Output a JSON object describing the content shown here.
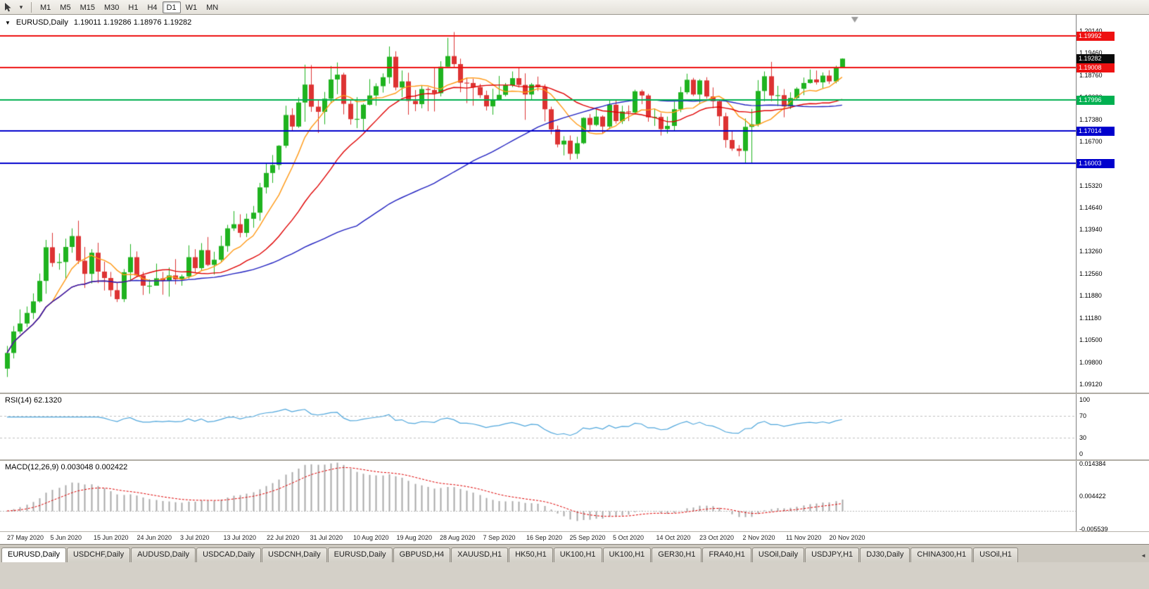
{
  "toolbar": {
    "timeframes": [
      {
        "label": "M1",
        "selected": false
      },
      {
        "label": "M5",
        "selected": false
      },
      {
        "label": "M15",
        "selected": false
      },
      {
        "label": "M30",
        "selected": false
      },
      {
        "label": "H1",
        "selected": false
      },
      {
        "label": "H4",
        "selected": false
      },
      {
        "label": "D1",
        "selected": true
      },
      {
        "label": "W1",
        "selected": false
      },
      {
        "label": "MN",
        "selected": false
      }
    ]
  },
  "icons": {
    "title_marker": "▼",
    "toolbar_caret": "▾",
    "tabs_scroll_left": "◄"
  },
  "chart_header": {
    "symbol_period": "EURUSD,Daily",
    "ohlc": "1.19011 1.19286 1.18976 1.19282"
  },
  "chart_data": {
    "type": "candlestick",
    "symbol": "EURUSD",
    "period": "Daily",
    "ylim": [
      1.0885,
      1.2065
    ],
    "up_color": "#1fb31f",
    "down_color": "#dd3333",
    "y_ticks": [
      "1.20140",
      "1.19460",
      "1.18760",
      "1.18080",
      "1.17380",
      "1.16700",
      "1.16020",
      "1.15320",
      "1.14640",
      "1.13940",
      "1.13260",
      "1.12560",
      "1.11880",
      "1.11180",
      "1.10500",
      "1.09800",
      "1.09120"
    ],
    "x_labels": [
      "27 May 2020",
      "5 Jun 2020",
      "15 Jun 2020",
      "24 Jun 2020",
      "3 Jul 2020",
      "13 Jul 2020",
      "22 Jul 2020",
      "31 Jul 2020",
      "10 Aug 2020",
      "19 Aug 2020",
      "28 Aug 2020",
      "7 Sep 2020",
      "16 Sep 2020",
      "25 Sep 2020",
      "5 Oct 2020",
      "14 Oct 2020",
      "23 Oct 2020",
      "2 Nov 2020",
      "11 Nov 2020",
      "20 Nov 2020"
    ],
    "horizontal_lines": [
      {
        "price": 1.19992,
        "label": "1.19992",
        "color": "#ee1111"
      },
      {
        "price": 1.19008,
        "label": "1.19008",
        "color": "#ee1111"
      },
      {
        "price": 1.17996,
        "label": "1.17996",
        "color": "#00b050"
      },
      {
        "price": 1.17014,
        "label": "1.17014",
        "color": "#0000cd"
      },
      {
        "price": 1.16003,
        "label": "1.16003",
        "color": "#0000cd"
      }
    ],
    "current_price": {
      "value": 1.19282,
      "label": "1.19282"
    },
    "moving_averages": [
      {
        "period": 8,
        "color": "#ff9914"
      },
      {
        "period": 20,
        "color": "#e00000"
      },
      {
        "period": 55,
        "color": "#2020c0"
      }
    ],
    "candles": [
      [
        1.096,
        1.1031,
        1.0934,
        1.1009
      ],
      [
        1.1009,
        1.1093,
        1.0992,
        1.1076
      ],
      [
        1.1076,
        1.1145,
        1.1069,
        1.1101
      ],
      [
        1.1101,
        1.1154,
        1.109,
        1.1134
      ],
      [
        1.1134,
        1.1195,
        1.1115,
        1.117
      ],
      [
        1.117,
        1.1257,
        1.1166,
        1.1234
      ],
      [
        1.1234,
        1.1362,
        1.1194,
        1.1339
      ],
      [
        1.1339,
        1.1384,
        1.1278,
        1.129
      ],
      [
        1.129,
        1.132,
        1.1269,
        1.1293
      ],
      [
        1.1293,
        1.1366,
        1.124,
        1.134
      ],
      [
        1.134,
        1.1398,
        1.1322,
        1.1374
      ],
      [
        1.1374,
        1.1422,
        1.1287,
        1.1297
      ],
      [
        1.1297,
        1.134,
        1.1212,
        1.1256
      ],
      [
        1.1256,
        1.1333,
        1.1226,
        1.1322
      ],
      [
        1.1322,
        1.1353,
        1.1227,
        1.1263
      ],
      [
        1.1263,
        1.1294,
        1.1204,
        1.1243
      ],
      [
        1.1243,
        1.1262,
        1.1185,
        1.1205
      ],
      [
        1.1205,
        1.1227,
        1.1168,
        1.1177
      ],
      [
        1.1177,
        1.1271,
        1.1168,
        1.1261
      ],
      [
        1.1261,
        1.1349,
        1.1233,
        1.1308
      ],
      [
        1.1308,
        1.1326,
        1.1246,
        1.1251
      ],
      [
        1.1251,
        1.1262,
        1.119,
        1.1219
      ],
      [
        1.1219,
        1.1239,
        1.1194,
        1.1219
      ],
      [
        1.1219,
        1.1288,
        1.1219,
        1.1242
      ],
      [
        1.1242,
        1.1262,
        1.1191,
        1.1234
      ],
      [
        1.1234,
        1.1276,
        1.1185,
        1.1251
      ],
      [
        1.1251,
        1.1302,
        1.1223,
        1.1239
      ],
      [
        1.1239,
        1.1254,
        1.1219,
        1.1248
      ],
      [
        1.1248,
        1.1345,
        1.1241,
        1.1308
      ],
      [
        1.1308,
        1.1333,
        1.1259,
        1.1274
      ],
      [
        1.1274,
        1.1352,
        1.1266,
        1.133
      ],
      [
        1.133,
        1.1371,
        1.128,
        1.1284
      ],
      [
        1.1284,
        1.1325,
        1.1254,
        1.13
      ],
      [
        1.13,
        1.1375,
        1.1293,
        1.1343
      ],
      [
        1.1343,
        1.1409,
        1.1325,
        1.1398
      ],
      [
        1.1398,
        1.1452,
        1.139,
        1.1411
      ],
      [
        1.1411,
        1.1442,
        1.137,
        1.1384
      ],
      [
        1.1384,
        1.1444,
        1.1371,
        1.1428
      ],
      [
        1.1428,
        1.1468,
        1.14,
        1.1447
      ],
      [
        1.1447,
        1.154,
        1.1422,
        1.1526
      ],
      [
        1.1526,
        1.1601,
        1.1507,
        1.1571
      ],
      [
        1.1571,
        1.1627,
        1.154,
        1.1596
      ],
      [
        1.1596,
        1.1658,
        1.1581,
        1.1656
      ],
      [
        1.1656,
        1.1781,
        1.1649,
        1.1752
      ],
      [
        1.1752,
        1.1773,
        1.1701,
        1.1716
      ],
      [
        1.1716,
        1.1807,
        1.1712,
        1.1791
      ],
      [
        1.1791,
        1.1909,
        1.1731,
        1.1847
      ],
      [
        1.1847,
        1.1908,
        1.1762,
        1.1778
      ],
      [
        1.1778,
        1.1797,
        1.1696,
        1.1762
      ],
      [
        1.1762,
        1.1824,
        1.1723,
        1.1803
      ],
      [
        1.1803,
        1.1905,
        1.179,
        1.1863
      ],
      [
        1.1863,
        1.1916,
        1.1817,
        1.1878
      ],
      [
        1.1878,
        1.1884,
        1.1754,
        1.1787
      ],
      [
        1.1787,
        1.1798,
        1.1722,
        1.1739
      ],
      [
        1.1739,
        1.1808,
        1.1711,
        1.174
      ],
      [
        1.174,
        1.1788,
        1.1701,
        1.1784
      ],
      [
        1.1784,
        1.1864,
        1.1782,
        1.1813
      ],
      [
        1.1813,
        1.1851,
        1.1781,
        1.1842
      ],
      [
        1.1842,
        1.1882,
        1.1822,
        1.187
      ],
      [
        1.187,
        1.1966,
        1.185,
        1.1934
      ],
      [
        1.1934,
        1.1951,
        1.1829,
        1.1838
      ],
      [
        1.1838,
        1.1891,
        1.1808,
        1.1857
      ],
      [
        1.1857,
        1.1884,
        1.1753,
        1.1796
      ],
      [
        1.1796,
        1.183,
        1.1764,
        1.1786
      ],
      [
        1.1786,
        1.1843,
        1.1773,
        1.1833
      ],
      [
        1.1833,
        1.1839,
        1.1764,
        1.183
      ],
      [
        1.183,
        1.1899,
        1.1763,
        1.182
      ],
      [
        1.182,
        1.192,
        1.181,
        1.1903
      ],
      [
        1.1903,
        1.1993,
        1.1898,
        1.1936
      ],
      [
        1.1936,
        1.2011,
        1.1901,
        1.1911
      ],
      [
        1.1911,
        1.1928,
        1.1823,
        1.1853
      ],
      [
        1.1853,
        1.1868,
        1.1789,
        1.1852
      ],
      [
        1.1852,
        1.1865,
        1.1781,
        1.1839
      ],
      [
        1.1839,
        1.1849,
        1.1805,
        1.1814
      ],
      [
        1.1814,
        1.1828,
        1.1766,
        1.1779
      ],
      [
        1.1779,
        1.1834,
        1.1753,
        1.1801
      ],
      [
        1.1801,
        1.1874,
        1.18,
        1.1815
      ],
      [
        1.1815,
        1.1852,
        1.181,
        1.1845
      ],
      [
        1.1845,
        1.1888,
        1.1839,
        1.1867
      ],
      [
        1.1867,
        1.19,
        1.1838,
        1.1846
      ],
      [
        1.1846,
        1.1882,
        1.1737,
        1.1816
      ],
      [
        1.1816,
        1.1852,
        1.1797,
        1.1847
      ],
      [
        1.1847,
        1.1872,
        1.1827,
        1.1839
      ],
      [
        1.1839,
        1.1848,
        1.1732,
        1.177
      ],
      [
        1.177,
        1.1778,
        1.1692,
        1.1707
      ],
      [
        1.1707,
        1.1719,
        1.1651,
        1.166
      ],
      [
        1.166,
        1.1686,
        1.1626,
        1.1672
      ],
      [
        1.1672,
        1.1688,
        1.1612,
        1.1631
      ],
      [
        1.1631,
        1.1684,
        1.1615,
        1.1664
      ],
      [
        1.1664,
        1.1745,
        1.1661,
        1.1743
      ],
      [
        1.1743,
        1.1755,
        1.17,
        1.1721
      ],
      [
        1.1721,
        1.1769,
        1.1717,
        1.1747
      ],
      [
        1.1747,
        1.1751,
        1.1695,
        1.1716
      ],
      [
        1.1716,
        1.1798,
        1.1708,
        1.1784
      ],
      [
        1.1784,
        1.1799,
        1.1725,
        1.1733
      ],
      [
        1.1733,
        1.1781,
        1.1724,
        1.1763
      ],
      [
        1.1763,
        1.1782,
        1.1733,
        1.176
      ],
      [
        1.176,
        1.1831,
        1.1754,
        1.1826
      ],
      [
        1.1826,
        1.1831,
        1.1786,
        1.1813
      ],
      [
        1.1813,
        1.1818,
        1.1731,
        1.1745
      ],
      [
        1.1745,
        1.1772,
        1.1718,
        1.1746
      ],
      [
        1.1746,
        1.1758,
        1.1688,
        1.1708
      ],
      [
        1.1708,
        1.1747,
        1.1694,
        1.1718
      ],
      [
        1.1718,
        1.1794,
        1.1703,
        1.177
      ],
      [
        1.177,
        1.184,
        1.1761,
        1.1823
      ],
      [
        1.1823,
        1.1881,
        1.1817,
        1.1862
      ],
      [
        1.1862,
        1.1868,
        1.1811,
        1.1816
      ],
      [
        1.1816,
        1.1864,
        1.1786,
        1.186
      ],
      [
        1.186,
        1.187,
        1.1803,
        1.181
      ],
      [
        1.181,
        1.1838,
        1.1773,
        1.1795
      ],
      [
        1.1795,
        1.18,
        1.1718,
        1.1748
      ],
      [
        1.1748,
        1.1759,
        1.165,
        1.1674
      ],
      [
        1.1674,
        1.1704,
        1.164,
        1.1647
      ],
      [
        1.1647,
        1.1658,
        1.1623,
        1.164
      ],
      [
        1.164,
        1.1741,
        1.1603,
        1.1715
      ],
      [
        1.1715,
        1.1771,
        1.1602,
        1.1723
      ],
      [
        1.1723,
        1.1861,
        1.1716,
        1.1827
      ],
      [
        1.1827,
        1.1888,
        1.1795,
        1.1873
      ],
      [
        1.1873,
        1.1918,
        1.1795,
        1.1813
      ],
      [
        1.1813,
        1.1843,
        1.178,
        1.1814
      ],
      [
        1.1814,
        1.1833,
        1.1745,
        1.1779
      ],
      [
        1.1779,
        1.1823,
        1.1771,
        1.1805
      ],
      [
        1.1805,
        1.1839,
        1.1799,
        1.1834
      ],
      [
        1.1834,
        1.1869,
        1.1814,
        1.1852
      ],
      [
        1.1852,
        1.1894,
        1.185,
        1.1863
      ],
      [
        1.1863,
        1.1891,
        1.1847,
        1.1854
      ],
      [
        1.1854,
        1.1885,
        1.1835,
        1.1875
      ],
      [
        1.1875,
        1.1892,
        1.1849,
        1.1857
      ],
      [
        1.1857,
        1.1906,
        1.1851,
        1.19
      ],
      [
        1.1901,
        1.1929,
        1.1898,
        1.1928
      ]
    ]
  },
  "rsi": {
    "label": "RSI(14) 62.1320",
    "period": 14,
    "value": 62.132,
    "ticks": [
      "100",
      "70",
      "30",
      "0"
    ],
    "levels": [
      70,
      30
    ],
    "display_range": [
      -10,
      110
    ],
    "color": "#4ea6dc"
  },
  "macd": {
    "label": "MACD(12,26,9) 0.003048 0.002422",
    "fast": 12,
    "slow": 26,
    "signal": 9,
    "main_value": 0.003048,
    "signal_value": 0.002422,
    "ticks": [
      "0.014384",
      "0.004422",
      "-0.005539"
    ],
    "display_range": [
      -0.0062,
      0.0152
    ],
    "histogram_color": "#a9a9a9",
    "signal_color": "#e00000"
  },
  "tabs": {
    "scroll_glyph": "◄",
    "items": [
      {
        "label": "EURUSD,Daily",
        "selected": true
      },
      {
        "label": "USDCHF,Daily",
        "selected": false
      },
      {
        "label": "AUDUSD,Daily",
        "selected": false
      },
      {
        "label": "USDCAD,Daily",
        "selected": false
      },
      {
        "label": "USDCNH,Daily",
        "selected": false
      },
      {
        "label": "EURUSD,Daily",
        "selected": false
      },
      {
        "label": "GBPUSD,H4",
        "selected": false
      },
      {
        "label": "XAUUSD,H1",
        "selected": false
      },
      {
        "label": "HK50,H1",
        "selected": false
      },
      {
        "label": "UK100,H1",
        "selected": false
      },
      {
        "label": "UK100,H1",
        "selected": false
      },
      {
        "label": "GER30,H1",
        "selected": false
      },
      {
        "label": "FRA40,H1",
        "selected": false
      },
      {
        "label": "USOil,Daily",
        "selected": false
      },
      {
        "label": "USDJPY,H1",
        "selected": false
      },
      {
        "label": "DJ30,Daily",
        "selected": false
      },
      {
        "label": "CHINA300,H1",
        "selected": false
      },
      {
        "label": "USOil,H1",
        "selected": false
      }
    ]
  }
}
